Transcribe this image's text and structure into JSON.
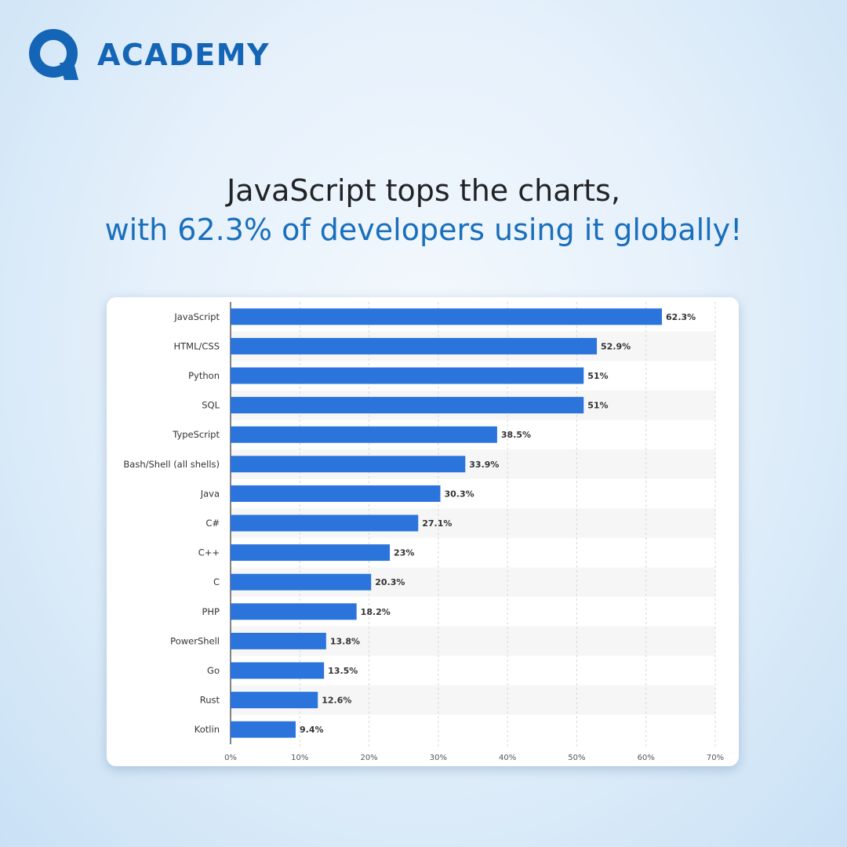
{
  "brand": {
    "name": "ACADEMY",
    "logo_icon": "q-logo-icon",
    "color": "#1565b6"
  },
  "headline": {
    "line1": "JavaScript tops the charts,",
    "line2": "with 62.3% of developers using it globally!"
  },
  "chart_data": {
    "type": "bar",
    "orientation": "horizontal",
    "categories": [
      "JavaScript",
      "HTML/CSS",
      "Python",
      "SQL",
      "TypeScript",
      "Bash/Shell (all shells)",
      "Java",
      "C#",
      "C++",
      "C",
      "PHP",
      "PowerShell",
      "Go",
      "Rust",
      "Kotlin"
    ],
    "values": [
      62.3,
      52.9,
      51,
      51,
      38.5,
      33.9,
      30.3,
      27.1,
      23,
      20.3,
      18.2,
      13.8,
      13.5,
      12.6,
      9.4
    ],
    "value_labels": [
      "62.3%",
      "52.9%",
      "51%",
      "51%",
      "38.5%",
      "33.9%",
      "30.3%",
      "27.1%",
      "23%",
      "20.3%",
      "18.2%",
      "13.8%",
      "13.5%",
      "12.6%",
      "9.4%"
    ],
    "xlim": [
      0,
      70
    ],
    "x_ticks": [
      "0%",
      "10%",
      "20%",
      "30%",
      "40%",
      "50%",
      "60%",
      "70%"
    ],
    "grid": true,
    "bar_color": "#2a74dc",
    "title": "",
    "xlabel": "",
    "ylabel": ""
  }
}
